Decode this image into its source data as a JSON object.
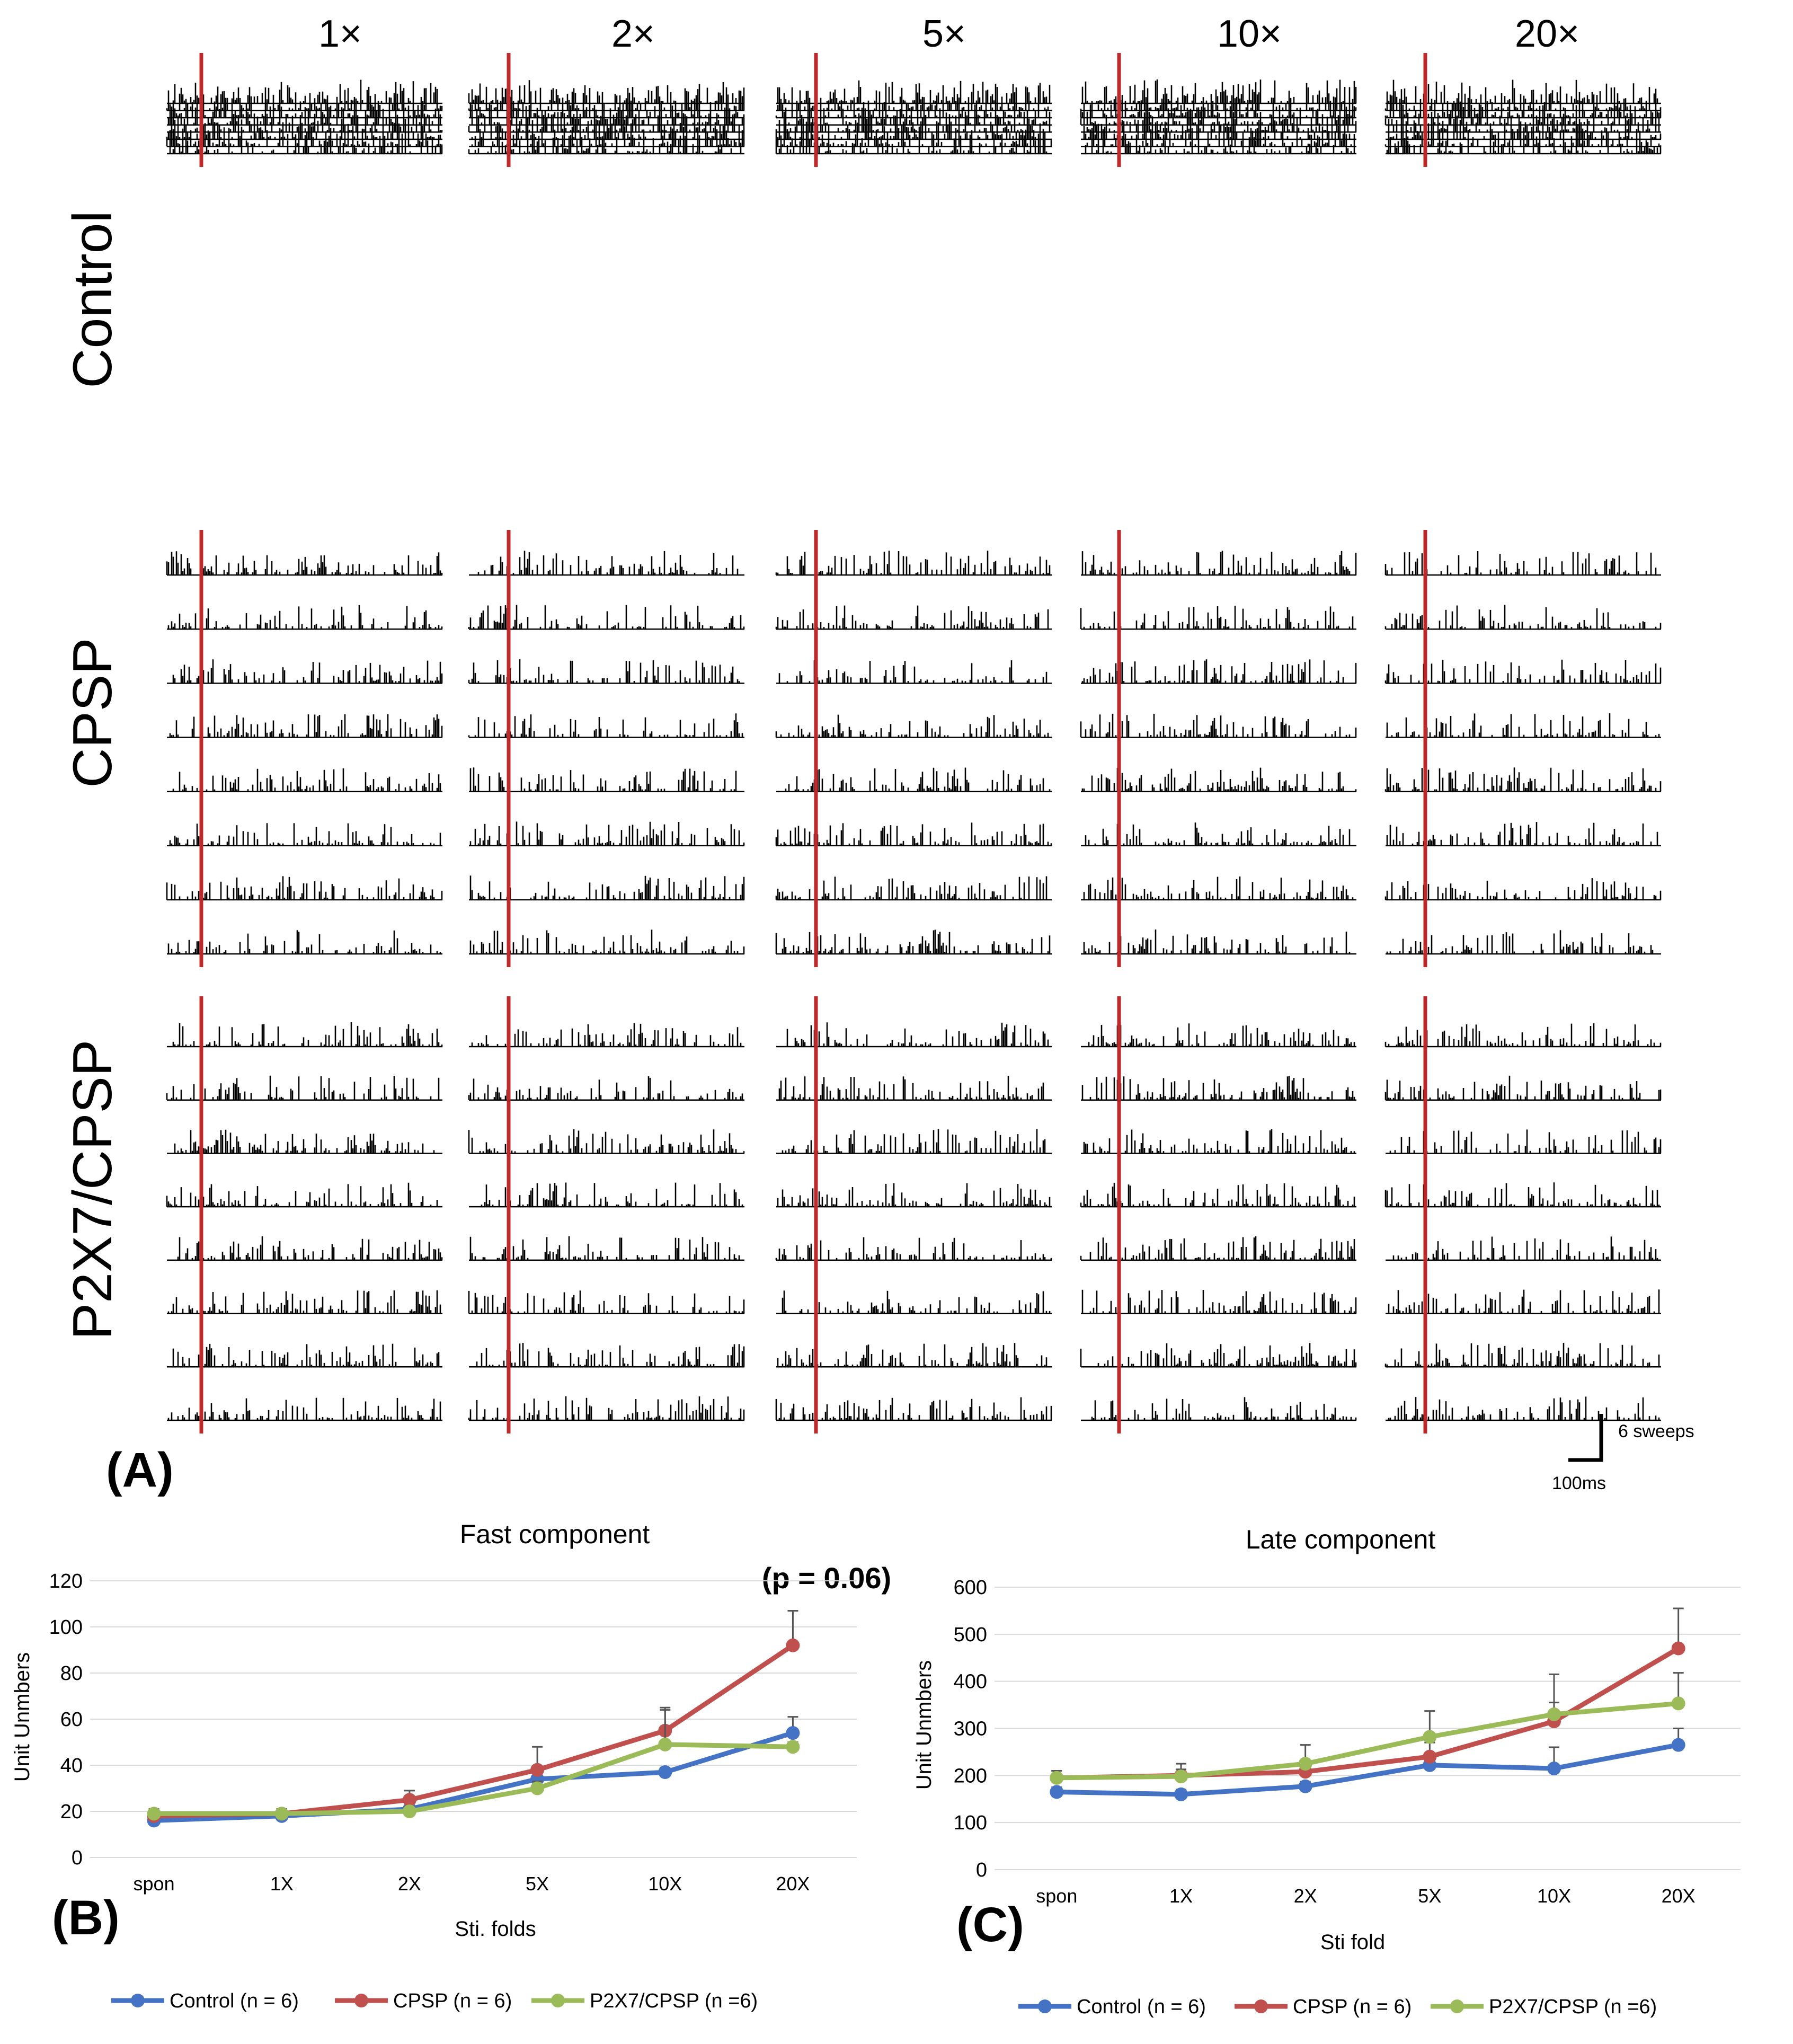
{
  "panel_a": {
    "panel_label": "(A)",
    "column_labels": [
      "1×",
      "2×",
      "5×",
      "10×",
      "20×"
    ],
    "row_labels": [
      "Control",
      "CPSP",
      "P2X7/CPSP"
    ],
    "scale_bar": {
      "vertical": "6 sweeps",
      "horizontal": "100ms"
    },
    "stimulus_marker_color": "#c0292a",
    "histogram_color": "#000000"
  },
  "panel_b_label": "(B)",
  "panel_c_label": "(C)",
  "chart_data": [
    {
      "type": "line",
      "title": "Fast component",
      "annotation": "(p = 0.06)",
      "xlabel": "Sti. folds",
      "ylabel": "Unit Unmbers",
      "categories": [
        "spon",
        "1X",
        "2X",
        "5X",
        "10X",
        "20X"
      ],
      "ylim": [
        0,
        120
      ],
      "yticks": [
        0,
        20,
        40,
        60,
        80,
        100,
        120
      ],
      "grid": true,
      "legend_position": "bottom",
      "series": [
        {
          "name": "Control (n = 6)",
          "color": "#4472c4",
          "values": [
            16,
            18,
            21,
            34,
            37,
            54
          ],
          "err": [
            2,
            2,
            3,
            3,
            2,
            7
          ]
        },
        {
          "name": "CPSP (n = 6)",
          "color": "#c0504d",
          "values": [
            18,
            19,
            25,
            38,
            55,
            92
          ],
          "err": [
            2,
            2,
            4,
            10,
            10,
            15
          ]
        },
        {
          "name": "P2X7/CPSP (n =6)",
          "color": "#9bbb59",
          "values": [
            19,
            19,
            20,
            30,
            49,
            48
          ],
          "err": [
            2,
            2,
            2,
            3,
            15,
            2
          ]
        }
      ]
    },
    {
      "type": "line",
      "title": "Late component",
      "xlabel": "Sti fold",
      "ylabel": "Unit Unmbers",
      "categories": [
        "spon",
        "1X",
        "2X",
        "5X",
        "10X",
        "20X"
      ],
      "ylim": [
        0,
        600
      ],
      "yticks": [
        0,
        100,
        200,
        300,
        400,
        500,
        600
      ],
      "grid": true,
      "legend_position": "bottom",
      "series": [
        {
          "name": "Control (n = 6)",
          "color": "#4472c4",
          "values": [
            165,
            160,
            177,
            222,
            215,
            265
          ],
          "err": [
            10,
            10,
            10,
            15,
            45,
            35
          ]
        },
        {
          "name": "CPSP (n = 6)",
          "color": "#c0504d",
          "values": [
            195,
            200,
            208,
            240,
            315,
            470
          ],
          "err": [
            15,
            25,
            25,
            30,
            40,
            85
          ]
        },
        {
          "name": "P2X7/CPSP (n =6)",
          "color": "#9bbb59",
          "values": [
            195,
            198,
            225,
            282,
            330,
            353
          ],
          "err": [
            15,
            15,
            40,
            55,
            85,
            65
          ]
        }
      ]
    }
  ]
}
